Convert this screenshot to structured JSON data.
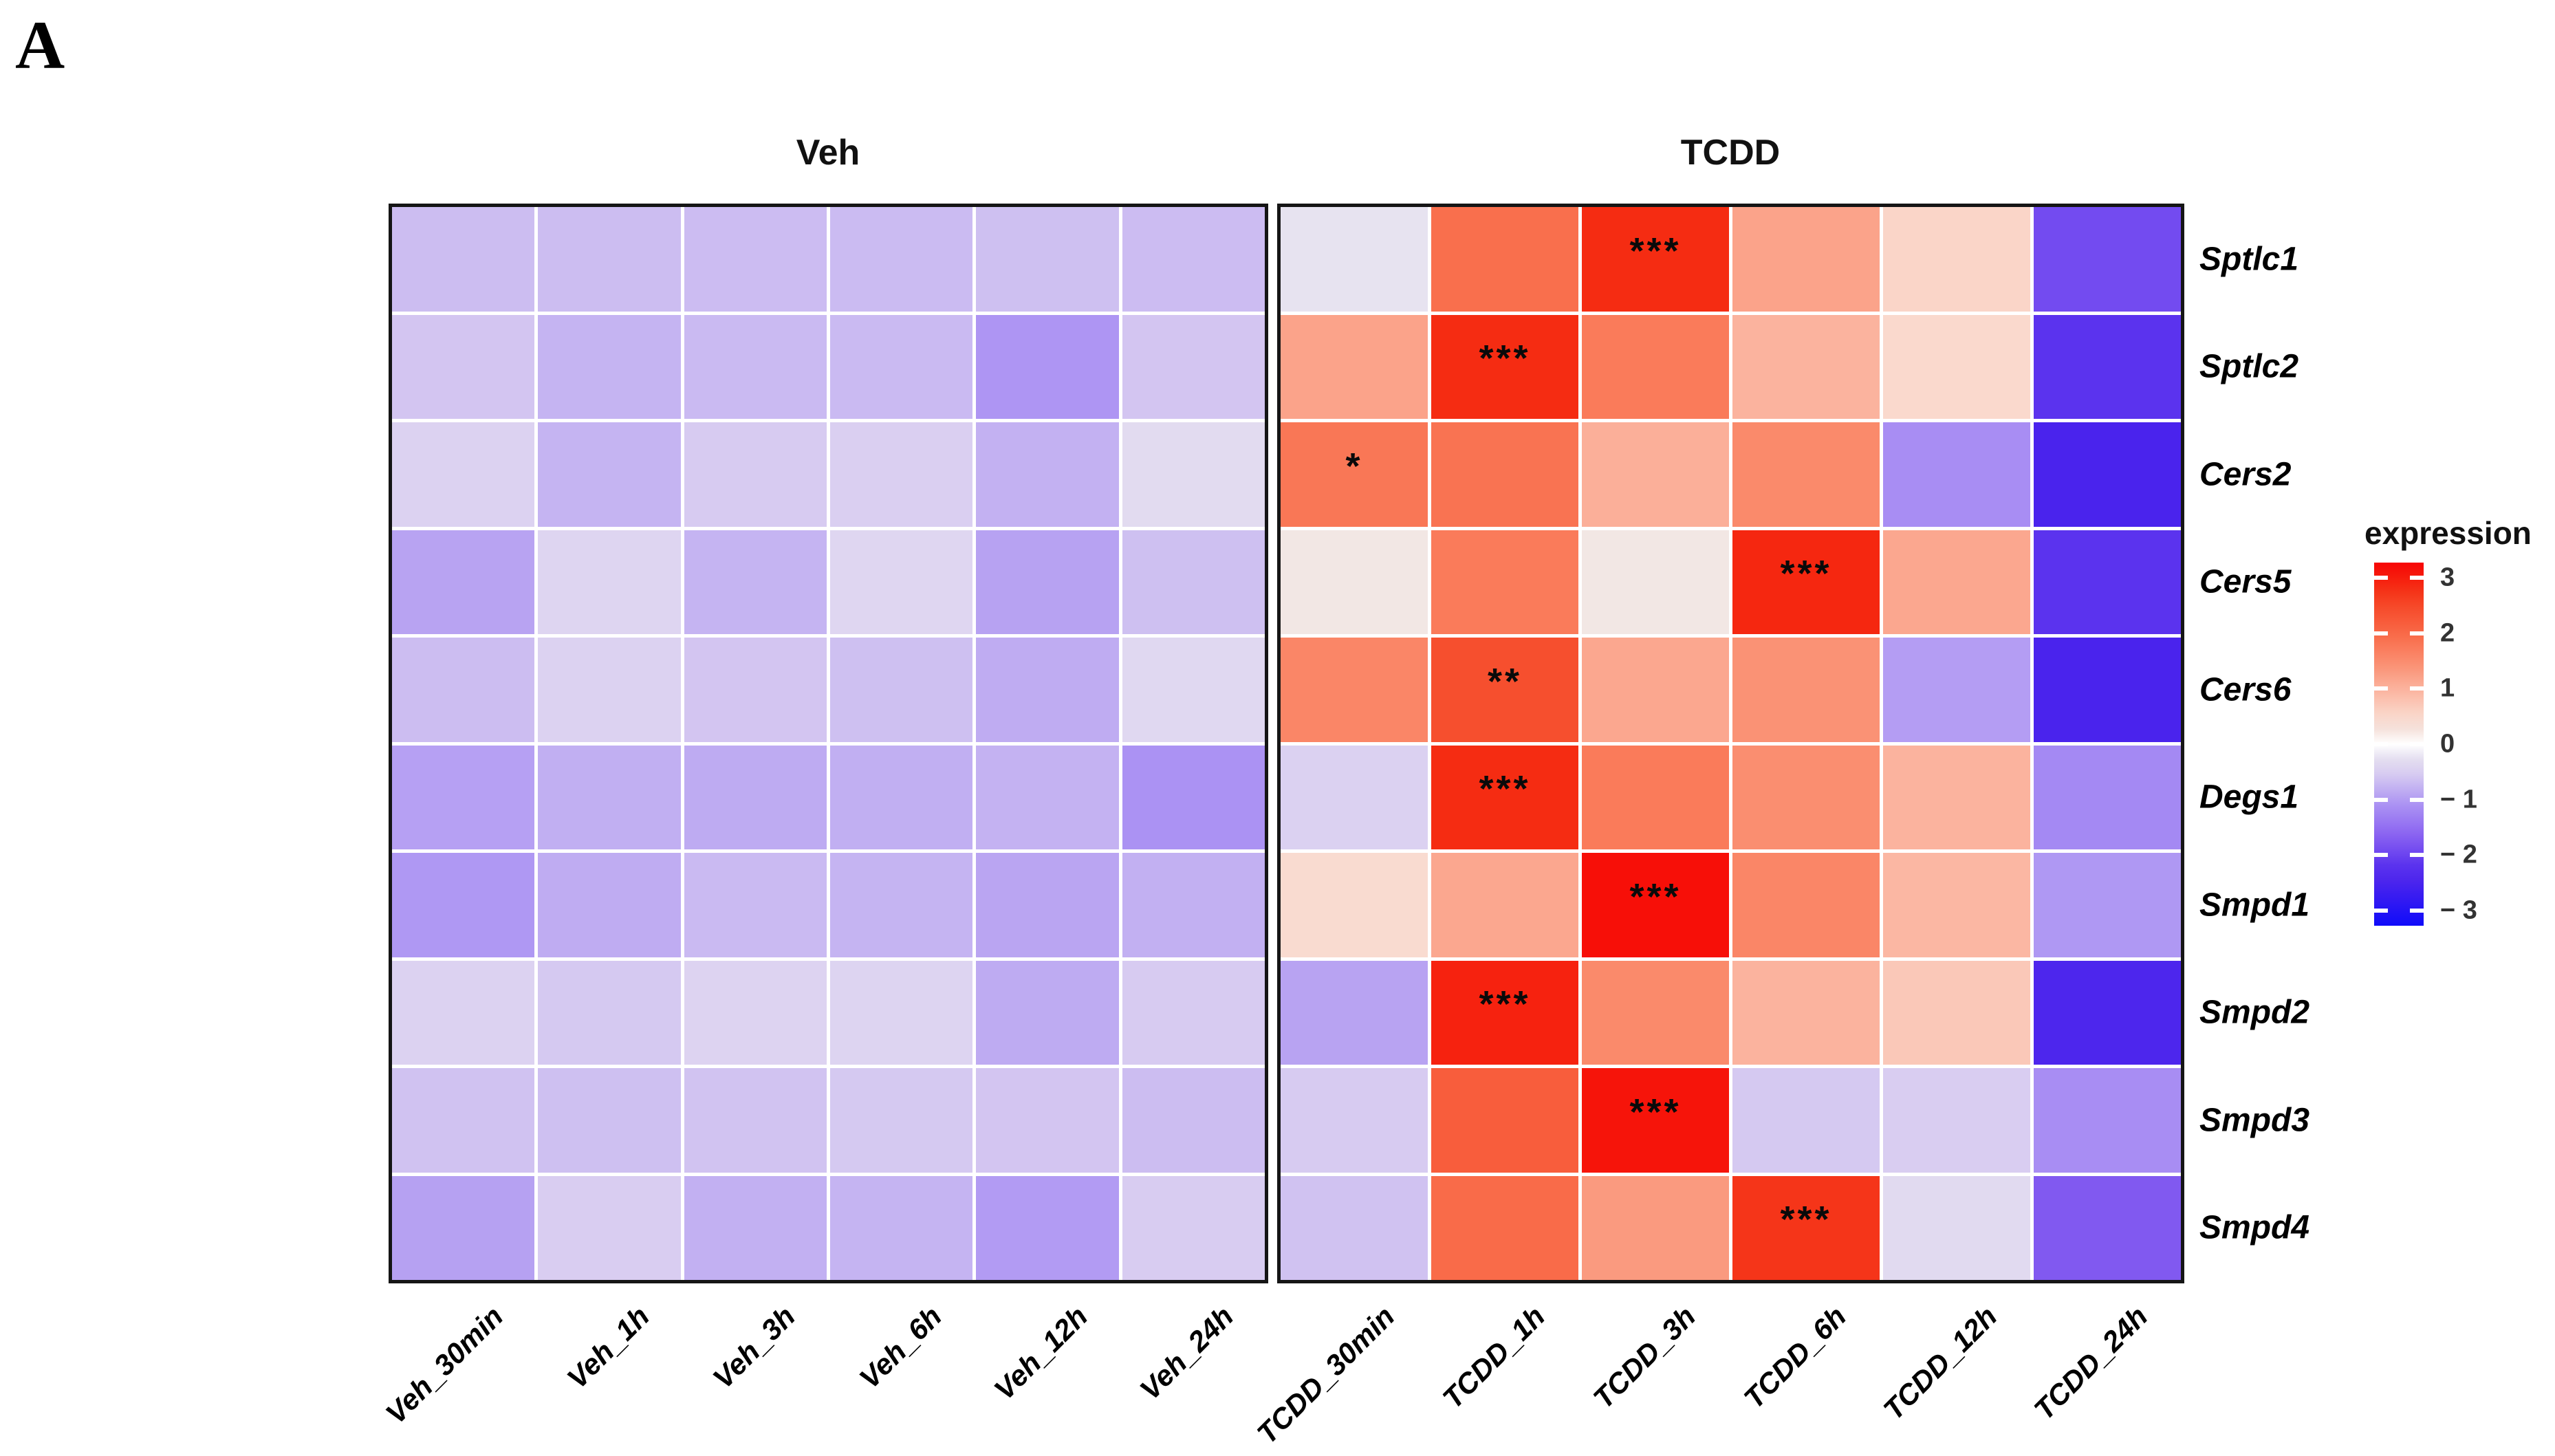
{
  "panel_label": "A",
  "panels": {
    "veh": {
      "title": "Veh"
    },
    "tcdd": {
      "title": "TCDD"
    }
  },
  "chart_data": {
    "type": "heatmap",
    "title": "",
    "genes": [
      "Sptlc1",
      "Sptlc2",
      "Cers2",
      "Cers5",
      "Cers6",
      "Degs1",
      "Smpd1",
      "Smpd2",
      "Smpd3",
      "Smpd4"
    ],
    "columns": {
      "veh": [
        "Veh_30min",
        "Veh_1h",
        "Veh_3h",
        "Veh_6h",
        "Veh_12h",
        "Veh_24h"
      ],
      "tcdd": [
        "TCDD_30min",
        "TCDD_1h",
        "TCDD_3h",
        "TCDD_6h",
        "TCDD_12h",
        "TCDD_24h"
      ]
    },
    "series": [
      {
        "name": "Veh",
        "values": [
          [
            -0.62,
            -0.62,
            -0.63,
            -0.64,
            -0.6,
            -0.63
          ],
          [
            -0.55,
            -0.7,
            -0.65,
            -0.65,
            -0.97,
            -0.55
          ],
          [
            -0.4,
            -0.7,
            -0.5,
            -0.45,
            -0.73,
            -0.28
          ],
          [
            -0.85,
            -0.37,
            -0.7,
            -0.35,
            -0.86,
            -0.6
          ],
          [
            -0.62,
            -0.4,
            -0.55,
            -0.6,
            -0.77,
            -0.33
          ],
          [
            -0.88,
            -0.75,
            -0.78,
            -0.75,
            -0.72,
            -1.0
          ],
          [
            -0.95,
            -0.77,
            -0.65,
            -0.7,
            -0.83,
            -0.74
          ],
          [
            -0.4,
            -0.52,
            -0.39,
            -0.38,
            -0.78,
            -0.5
          ],
          [
            -0.58,
            -0.6,
            -0.57,
            -0.52,
            -0.55,
            -0.62
          ],
          [
            -0.87,
            -0.47,
            -0.74,
            -0.7,
            -0.92,
            -0.48
          ]
        ]
      },
      {
        "name": "TCDD",
        "values": [
          [
            -0.18,
            1.75,
            2.6,
            1.1,
            0.5,
            -1.75
          ],
          [
            1.1,
            2.6,
            1.6,
            0.9,
            0.45,
            -2.0
          ],
          [
            1.65,
            1.7,
            0.95,
            1.4,
            -1.05,
            -2.3
          ],
          [
            0.12,
            1.6,
            0.12,
            2.65,
            1.05,
            -2.0
          ],
          [
            1.45,
            2.2,
            1.05,
            1.3,
            -0.9,
            -2.3
          ],
          [
            -0.42,
            2.6,
            1.6,
            1.35,
            0.9,
            -1.1
          ],
          [
            0.4,
            1.05,
            2.9,
            1.45,
            0.85,
            -0.95
          ],
          [
            -0.85,
            2.7,
            1.4,
            0.9,
            0.65,
            -2.25
          ],
          [
            -0.5,
            2.0,
            2.85,
            -0.52,
            -0.47,
            -1.05
          ],
          [
            -0.58,
            1.8,
            1.2,
            2.5,
            -0.3,
            -1.6
          ]
        ]
      }
    ],
    "significance_tcdd": [
      [
        "",
        "",
        "***",
        "",
        "",
        ""
      ],
      [
        "",
        "***",
        "",
        "",
        "",
        ""
      ],
      [
        "*",
        "",
        "",
        "",
        "",
        ""
      ],
      [
        "",
        "",
        "",
        "***",
        "",
        ""
      ],
      [
        "",
        "**",
        "",
        "",
        "",
        ""
      ],
      [
        "",
        "***",
        "",
        "",
        "",
        ""
      ],
      [
        "",
        "",
        "***",
        "",
        "",
        ""
      ],
      [
        "",
        "***",
        "",
        "",
        "",
        ""
      ],
      [
        "",
        "",
        "***",
        "",
        "",
        ""
      ],
      [
        "",
        "",
        "",
        "***",
        "",
        ""
      ]
    ],
    "legend": {
      "title": "expression",
      "tick_labels": [
        "3",
        "2",
        "1",
        "0",
        "− 1",
        "− 2",
        "− 3"
      ],
      "tick_values": [
        3,
        2,
        1,
        0,
        -1,
        -2,
        -3
      ],
      "domain": [
        -3,
        3
      ],
      "high_color": "#FF0000",
      "mid_color": "#FFFFFF",
      "low_color": "#0000FF",
      "position": "right"
    },
    "layout_hints": {
      "x_label_rotation": 45,
      "cell_grout": "white",
      "panel_border": "black",
      "gene_labels_side": "right"
    }
  }
}
